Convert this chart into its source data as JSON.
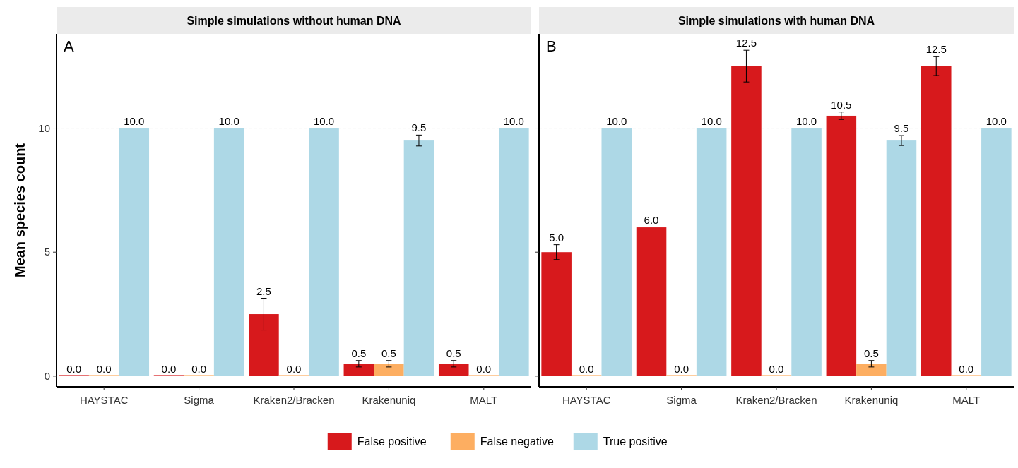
{
  "chart_data": [
    {
      "type": "bar",
      "title": "Simple simulations without human DNA",
      "ylabel": "Mean species count",
      "annotations": [
        "A"
      ],
      "categories": [
        "HAYSTAC",
        "Sigma",
        "Kraken2/Bracken",
        "Krakenuniq",
        "MALT"
      ],
      "ylim": [
        -0.43,
        13.8
      ],
      "yticks": [
        0,
        5,
        10
      ],
      "ref_lines": [
        {
          "axis": "y",
          "value": 10,
          "line_style": "dashed",
          "color": "#333333"
        }
      ],
      "legend": "bottom",
      "series": [
        {
          "name": "False positive",
          "color": "#d7191c",
          "values": [
            0,
            0,
            2.5,
            0.5,
            0.5
          ],
          "errors": [
            null,
            null,
            0.64,
            0.13,
            0.13
          ],
          "value_labels": [
            "0.0",
            "0.0",
            "2.5",
            "0.5",
            "0.5"
          ]
        },
        {
          "name": "False negative",
          "color": "#fdae61",
          "values": [
            0,
            0,
            0,
            0.5,
            0
          ],
          "errors": [
            null,
            null,
            null,
            0.13,
            null
          ],
          "value_labels": [
            "0.0",
            "0.0",
            "0.0",
            "0.5",
            "0.0"
          ]
        },
        {
          "name": "True positive",
          "color": "#add8e6",
          "values": [
            10,
            10,
            10,
            9.5,
            10
          ],
          "errors": [
            null,
            null,
            null,
            0.22,
            null
          ],
          "value_labels": [
            "10.0",
            "10.0",
            "10.0",
            "9.5",
            "10.0"
          ]
        }
      ]
    },
    {
      "type": "bar",
      "title": "Simple simulations with human DNA",
      "annotations": [
        "B"
      ],
      "categories": [
        "HAYSTAC",
        "Sigma",
        "Kraken2/Bracken",
        "Krakenuniq",
        "MALT"
      ],
      "ylim": [
        -0.43,
        13.8
      ],
      "yticks": [
        0,
        5,
        10
      ],
      "tick_labels": "x",
      "ref_lines": [
        {
          "axis": "y",
          "value": 10,
          "line_style": "dashed",
          "color": "#333333"
        }
      ],
      "series": [
        {
          "color": "#d7191c",
          "values": [
            5,
            6,
            12.5,
            10.5,
            12.5
          ],
          "errors": [
            0.3,
            null,
            0.64,
            0.15,
            0.38
          ],
          "value_labels": [
            "5.0",
            "6.0",
            "12.5",
            "10.5",
            "12.5"
          ]
        },
        {
          "color": "#fdae61",
          "values": [
            0,
            0,
            0,
            0.5,
            0
          ],
          "errors": [
            null,
            null,
            null,
            0.13,
            null
          ],
          "value_labels": [
            "0.0",
            "0.0",
            "0.0",
            "0.5",
            "0.0"
          ]
        },
        {
          "color": "#add8e6",
          "values": [
            10,
            10,
            10,
            9.5,
            10
          ],
          "errors": [
            null,
            null,
            null,
            0.2,
            null
          ],
          "value_labels": [
            "10.0",
            "10.0",
            "10.0",
            "9.5",
            "10.0"
          ]
        }
      ]
    }
  ]
}
